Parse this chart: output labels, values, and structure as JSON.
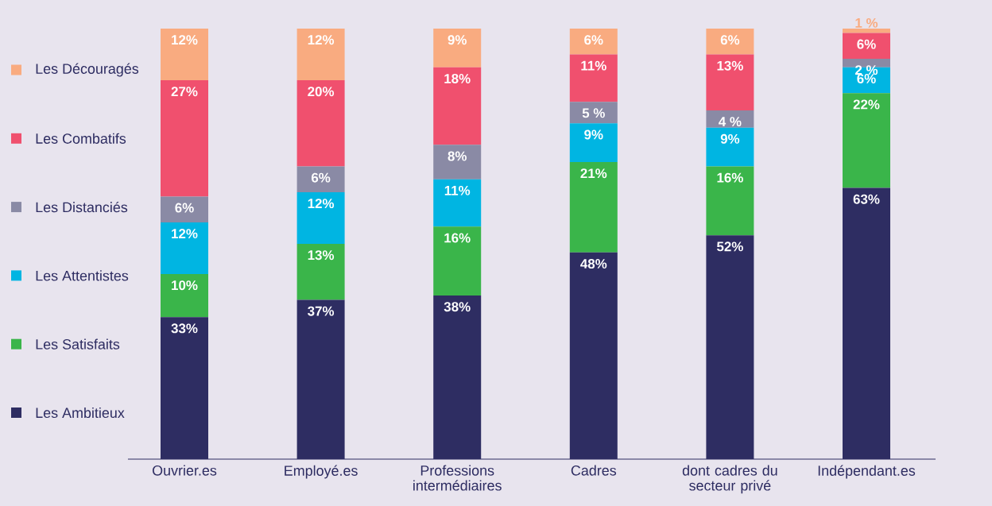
{
  "chart_data": {
    "type": "bar",
    "stacked": true,
    "legend": "left",
    "categories": [
      "Ouvrier.es",
      "Employé.es",
      "Professions intermédiaires",
      "Cadres",
      "dont cadres du secteur privé",
      "Indépendant.es"
    ],
    "series": [
      {
        "name": "Les Ambitieux",
        "color": "#2e2d62",
        "values": [
          33,
          37,
          38,
          48,
          52,
          63
        ],
        "value_labels": [
          "33%",
          "37%",
          "38%",
          "48%",
          "52%",
          "63%"
        ]
      },
      {
        "name": "Les Satisfaits",
        "color": "#3ab54a",
        "values": [
          10,
          13,
          16,
          21,
          16,
          22
        ],
        "value_labels": [
          "10%",
          "13%",
          "16%",
          "21%",
          "16%",
          "22%"
        ]
      },
      {
        "name": "Les Attentistes",
        "color": "#00b5e2",
        "values": [
          12,
          12,
          11,
          9,
          9,
          6
        ],
        "value_labels": [
          "12%",
          "12%",
          "11%",
          "9%",
          "9%",
          "6%"
        ]
      },
      {
        "name": "Les Distanciés",
        "color": "#8a8aa5",
        "values": [
          6,
          6,
          8,
          5,
          4,
          2
        ],
        "value_labels": [
          "6%",
          "6%",
          "8%",
          "5 %",
          "4 %",
          "2 %"
        ]
      },
      {
        "name": "Les Combatifs",
        "color": "#f0506e",
        "values": [
          27,
          20,
          18,
          11,
          13,
          6
        ],
        "value_labels": [
          "27%",
          "20%",
          "18%",
          "11%",
          "13%",
          "6%"
        ]
      },
      {
        "name": "Les Découragés",
        "color": "#f9ab80",
        "values": [
          12,
          12,
          9,
          6,
          6,
          1
        ],
        "value_labels": [
          "12%",
          "12%",
          "9%",
          "6%",
          "6%",
          "1 %"
        ]
      }
    ]
  }
}
